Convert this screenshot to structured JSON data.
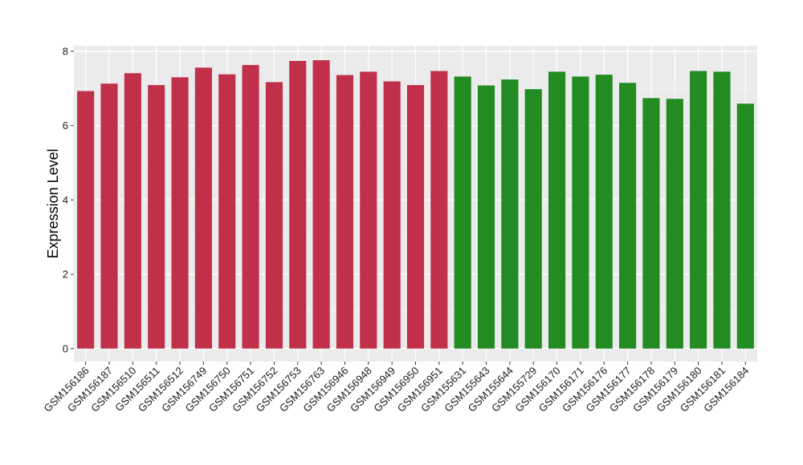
{
  "chart_data": {
    "type": "bar",
    "title": "",
    "xlabel": "",
    "ylabel": "Expression Level",
    "ylim": [
      -0.35,
      8.15
    ],
    "yticks": [
      0,
      2,
      4,
      6,
      8
    ],
    "grid": true,
    "legend": "none",
    "colors": {
      "group1": "#C1304A",
      "group2": "#228B22",
      "panel": "#EBEBEB",
      "grid": "#FFFFFF"
    },
    "categories": [
      "GSM156186",
      "GSM156187",
      "GSM156510",
      "GSM156511",
      "GSM156512",
      "GSM156749",
      "GSM156750",
      "GSM156751",
      "GSM156752",
      "GSM156753",
      "GSM156763",
      "GSM156946",
      "GSM156948",
      "GSM156949",
      "GSM156950",
      "GSM156951",
      "GSM155631",
      "GSM155643",
      "GSM155644",
      "GSM155729",
      "GSM156170",
      "GSM156171",
      "GSM156176",
      "GSM156177",
      "GSM156178",
      "GSM156179",
      "GSM156180",
      "GSM156181",
      "GSM156184"
    ],
    "values": [
      6.93,
      7.13,
      7.41,
      7.09,
      7.3,
      7.56,
      7.38,
      7.63,
      7.17,
      7.74,
      7.76,
      7.36,
      7.45,
      7.19,
      7.09,
      7.47,
      7.32,
      7.08,
      7.24,
      6.98,
      7.45,
      7.32,
      7.37,
      7.15,
      6.74,
      6.72,
      7.47,
      7.45,
      6.59
    ],
    "groups": [
      1,
      1,
      1,
      1,
      1,
      1,
      1,
      1,
      1,
      1,
      1,
      1,
      1,
      1,
      1,
      1,
      2,
      2,
      2,
      2,
      2,
      2,
      2,
      2,
      2,
      2,
      2,
      2,
      2
    ]
  }
}
